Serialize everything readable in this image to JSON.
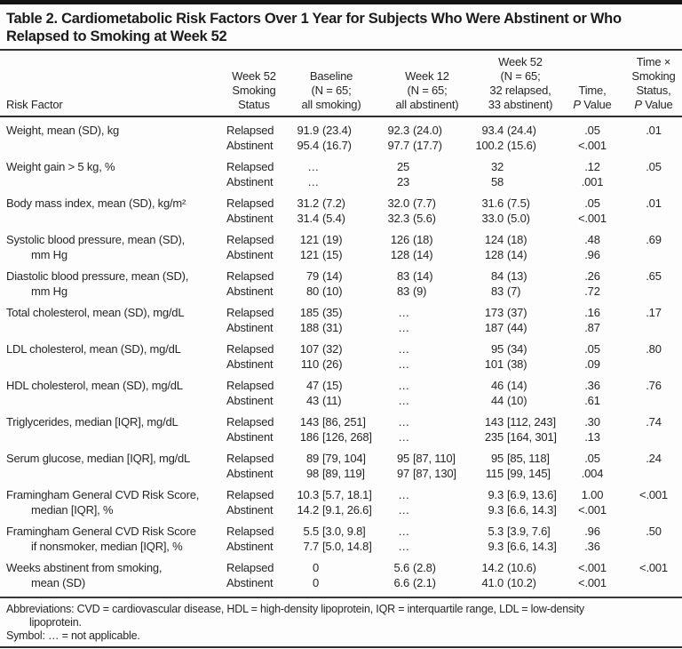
{
  "colors": {
    "top_bar": "#141414",
    "rule": "#2e2e2e",
    "text": "#262626",
    "background": "#fdfdfd"
  },
  "title": {
    "line1": "Table 2. Cardiometabolic Risk Factors Over 1 Year for Subjects Who Were Abstinent or Who",
    "line2": "Relapsed to Smoking at Week 52"
  },
  "header": {
    "risk_factor": "Risk Factor",
    "smoking_status": [
      "Week 52",
      "Smoking",
      "Status"
    ],
    "baseline": [
      "Baseline",
      "(N = 65;",
      "all smoking)"
    ],
    "week12": [
      "Week 12",
      "(N = 65;",
      "all abstinent)"
    ],
    "week52": [
      "Week 52",
      "(N = 65;",
      "32 relapsed,",
      "33 abstinent)"
    ],
    "time": {
      "line1": "Time,",
      "p": "P",
      "value": " Value"
    },
    "interaction": {
      "line1": "Time ×",
      "line2": "Smoking",
      "line3": "Status,",
      "p": "P",
      "value": " Value"
    }
  },
  "rows": [
    {
      "label": "Weight, mean (SD), kg",
      "label2": "",
      "relapsed": {
        "status": "Relapsed",
        "baseline": "91.9 (23.4)",
        "week12": "92.3 (24.0)",
        "week52": "93.4 (24.4)",
        "p": ".05"
      },
      "abstinent": {
        "status": "Abstinent",
        "baseline": "95.4 (16.7)",
        "week12": "97.7 (17.7)",
        "week52": "100.2 (15.6)",
        "p": "<.001"
      },
      "interaction_p": ".01"
    },
    {
      "label": "Weight gain > 5 kg, %",
      "label2": "",
      "relapsed": {
        "status": "Relapsed",
        "baseline": "…",
        "week12": "25",
        "week52": "32",
        "p": ".12"
      },
      "abstinent": {
        "status": "Abstinent",
        "baseline": "…",
        "week12": "23",
        "week52": "58",
        "p": ".001"
      },
      "interaction_p": ".05"
    },
    {
      "label": "Body mass index, mean (SD), kg/m²",
      "label2": "",
      "relapsed": {
        "status": "Relapsed",
        "baseline": "31.2 (7.2)",
        "week12": "32.0 (7.7)",
        "week52": "31.6 (7.5)",
        "p": ".05"
      },
      "abstinent": {
        "status": "Abstinent",
        "baseline": "31.4 (5.4)",
        "week12": "32.3 (5.6)",
        "week52": "33.0 (5.0)",
        "p": "<.001"
      },
      "interaction_p": ".01"
    },
    {
      "label": "Systolic blood pressure, mean (SD),",
      "label2": "mm Hg",
      "relapsed": {
        "status": "Relapsed",
        "baseline": "121 (19)",
        "week12": "126 (18)",
        "week52": "124 (18)",
        "p": ".48"
      },
      "abstinent": {
        "status": "Abstinent",
        "baseline": "121 (15)",
        "week12": "128 (14)",
        "week52": "128 (14)",
        "p": ".96"
      },
      "interaction_p": ".69"
    },
    {
      "label": "Diastolic blood pressure, mean (SD),",
      "label2": "mm Hg",
      "relapsed": {
        "status": "Relapsed",
        "baseline": "79 (14)",
        "week12": "83 (14)",
        "week52": "84 (13)",
        "p": ".26"
      },
      "abstinent": {
        "status": "Abstinent",
        "baseline": "80 (10)",
        "week12": "83 (9)",
        "week52": "83 (7)",
        "p": ".72"
      },
      "interaction_p": ".65"
    },
    {
      "label": "Total cholesterol, mean (SD), mg/dL",
      "label2": "",
      "relapsed": {
        "status": "Relapsed",
        "baseline": "185 (35)",
        "week12": "…",
        "week52": "173 (37)",
        "p": ".16"
      },
      "abstinent": {
        "status": "Abstinent",
        "baseline": "188 (31)",
        "week12": "…",
        "week52": "187 (44)",
        "p": ".87"
      },
      "interaction_p": ".17"
    },
    {
      "label": "LDL cholesterol, mean (SD), mg/dL",
      "label2": "",
      "relapsed": {
        "status": "Relapsed",
        "baseline": "107 (32)",
        "week12": "…",
        "week52": "95 (34)",
        "p": ".05"
      },
      "abstinent": {
        "status": "Abstinent",
        "baseline": "110 (26)",
        "week12": "…",
        "week52": "101 (38)",
        "p": ".09"
      },
      "interaction_p": ".80"
    },
    {
      "label": "HDL cholesterol, mean (SD), mg/dL",
      "label2": "",
      "relapsed": {
        "status": "Relapsed",
        "baseline": "47 (15)",
        "week12": "…",
        "week52": "46 (14)",
        "p": ".36"
      },
      "abstinent": {
        "status": "Abstinent",
        "baseline": "43 (11)",
        "week12": "…",
        "week52": "44 (10)",
        "p": ".61"
      },
      "interaction_p": ".76"
    },
    {
      "label": "Triglycerides, median [IQR], mg/dL",
      "label2": "",
      "relapsed": {
        "status": "Relapsed",
        "baseline": "143 [86, 251]",
        "week12": "…",
        "week52": "143 [112, 243]",
        "p": ".30"
      },
      "abstinent": {
        "status": "Abstinent",
        "baseline": "186 [126, 268]",
        "week12": "…",
        "week52": "235 [164, 301]",
        "p": ".13"
      },
      "interaction_p": ".74"
    },
    {
      "label": "Serum glucose, median [IQR], mg/dL",
      "label2": "",
      "relapsed": {
        "status": "Relapsed",
        "baseline": "89 [79, 104]",
        "week12": "95 [87, 110]",
        "week52": "95 [85, 118]",
        "p": ".05"
      },
      "abstinent": {
        "status": "Abstinent",
        "baseline": "98 [89, 119]",
        "week12": "97 [87, 130]",
        "week52": "115 [99, 145]",
        "p": ".004"
      },
      "interaction_p": ".24"
    },
    {
      "label": "Framingham General CVD Risk Score,",
      "label2": "median [IQR], %",
      "relapsed": {
        "status": "Relapsed",
        "baseline": "10.3 [5.7, 18.1]",
        "week12": "…",
        "week52": "9.3 [6.9, 13.6]",
        "p": "1.00"
      },
      "abstinent": {
        "status": "Abstinent",
        "baseline": "14.2 [9.1, 26.6]",
        "week12": "…",
        "week52": "9.3 [6.6, 14.3]",
        "p": "<.001"
      },
      "interaction_p": "<.001"
    },
    {
      "label": "Framingham General CVD Risk Score",
      "label2": "if nonsmoker, median [IQR], %",
      "relapsed": {
        "status": "Relapsed",
        "baseline": "5.5 [3.0, 9.8]",
        "week12": "…",
        "week52": "5.3 [3.9, 7.6]",
        "p": ".96"
      },
      "abstinent": {
        "status": "Abstinent",
        "baseline": "7.7 [5.0, 14.8]",
        "week12": "…",
        "week52": "9.3 [6.6, 14.3]",
        "p": ".36"
      },
      "interaction_p": ".50"
    },
    {
      "label": "Weeks abstinent from smoking,",
      "label2": "mean (SD)",
      "relapsed": {
        "status": "Relapsed",
        "baseline": "0",
        "week12": "5.6 (2.8)",
        "week52": "14.2 (10.6)",
        "p": "<.001"
      },
      "abstinent": {
        "status": "Abstinent",
        "baseline": "0",
        "week12": "6.6 (2.1)",
        "week52": "41.0 (10.2)",
        "p": "<.001"
      },
      "interaction_p": "<.001"
    }
  ],
  "footnotes": {
    "abbrev_line1": "Abbreviations: CVD = cardiovascular disease, HDL = high-density lipoprotein, IQR = interquartile range, LDL = low-density",
    "abbrev_line2": "lipoprotein.",
    "symbol_line": "Symbol: … = not applicable."
  }
}
